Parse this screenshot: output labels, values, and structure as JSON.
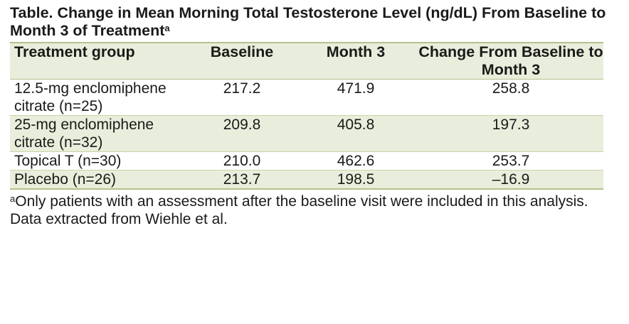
{
  "title": {
    "text": "Table. Change in Mean Morning Total Testosterone Level (ng/dL) From Baseline to Month 3 of Treatment",
    "marker": "a"
  },
  "table": {
    "headers": [
      "Treatment group",
      "Baseline",
      "Month 3",
      "Change From Baseline to Month 3"
    ],
    "rows": [
      [
        "12.5-mg enclomiphene citrate (n=25)",
        "217.2",
        "471.9",
        "258.8"
      ],
      [
        "25-mg enclomiphene citrate (n=32)",
        "209.8",
        "405.8",
        "197.3"
      ],
      [
        "Topical T (n=30)",
        "210.0",
        "462.6",
        "253.7"
      ],
      [
        "Placebo (n=26)",
        "213.7",
        "198.5",
        "–16.9"
      ]
    ]
  },
  "footnote": {
    "marker": "a",
    "text": "Only patients with an assessment after the baseline visit were included in this analysis."
  },
  "source": "Data extracted from Wiehle et al.",
  "colors": {
    "band": "#e8eedb",
    "rule": "#b3c28c"
  }
}
